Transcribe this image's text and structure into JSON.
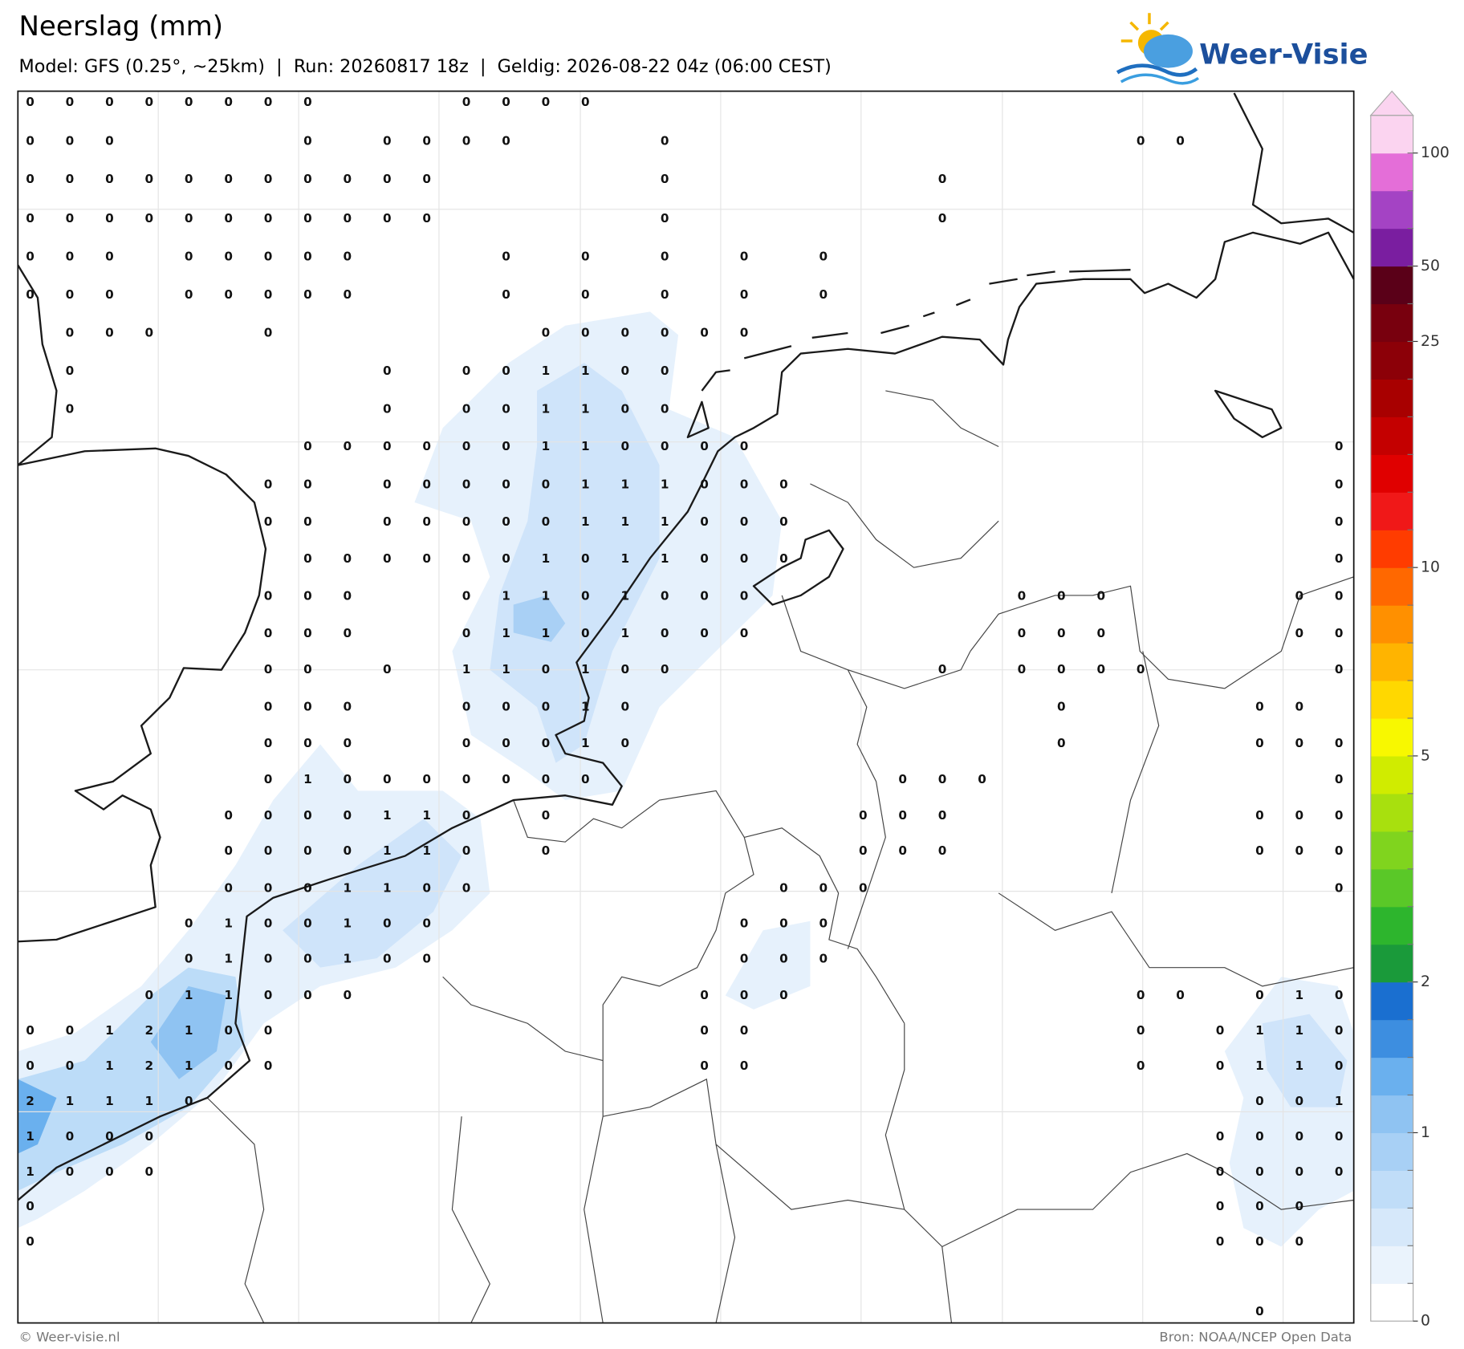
{
  "header": {
    "title": "Neerslag (mm)",
    "subtitle": "Model: GFS (0.25°, ~25km)  |  Run: 20260817 18z  |  Geldig: 2026-08-22 04z (06:00 CEST)",
    "logo": "Weer-Visie"
  },
  "map": {
    "type": "precipitation-map",
    "values": [
      [
        0,
        0,
        0,
        0,
        0,
        0,
        0,
        0,
        null,
        null,
        null,
        0,
        0,
        0,
        0
      ],
      [
        0,
        0,
        0,
        null,
        null,
        null,
        null,
        0,
        null,
        0,
        0,
        0,
        0,
        null,
        null,
        null,
        0,
        null,
        null,
        null,
        null,
        null,
        null,
        null,
        null,
        null,
        null,
        null,
        0,
        0
      ],
      [
        0,
        0,
        0,
        0,
        0,
        0,
        0,
        0,
        0,
        0,
        0,
        null,
        null,
        null,
        null,
        null,
        0,
        null,
        null,
        null,
        null,
        null,
        null,
        0
      ],
      [
        0,
        0,
        0,
        0,
        0,
        0,
        0,
        0,
        0,
        0,
        0,
        null,
        null,
        null,
        null,
        null,
        0,
        null,
        null,
        null,
        null,
        null,
        null,
        0
      ],
      [
        0,
        0,
        0,
        null,
        0,
        0,
        0,
        0,
        0,
        null,
        null,
        null,
        0,
        null,
        0,
        null,
        0,
        null,
        0,
        null,
        0
      ],
      [
        0,
        0,
        0,
        null,
        0,
        0,
        0,
        0,
        0,
        null,
        null,
        null,
        0,
        null,
        0,
        null,
        0,
        null,
        0,
        null,
        0
      ],
      [
        null,
        0,
        0,
        0,
        null,
        null,
        0,
        null,
        null,
        null,
        null,
        null,
        null,
        0,
        0,
        0,
        0,
        0,
        0
      ],
      [
        null,
        0,
        null,
        null,
        null,
        null,
        null,
        null,
        null,
        0,
        null,
        0,
        0,
        1,
        1,
        0,
        0
      ],
      [
        null,
        0,
        null,
        null,
        null,
        null,
        null,
        null,
        null,
        0,
        null,
        0,
        0,
        1,
        1,
        0,
        0
      ],
      [
        null,
        null,
        null,
        null,
        null,
        null,
        null,
        0,
        0,
        0,
        0,
        0,
        0,
        1,
        1,
        0,
        0,
        0,
        0,
        null,
        null,
        null,
        null,
        null,
        null,
        null,
        null,
        null,
        null,
        null,
        null,
        null,
        null,
        0
      ],
      [
        null,
        null,
        null,
        null,
        null,
        null,
        0,
        0,
        null,
        0,
        0,
        0,
        0,
        0,
        1,
        1,
        1,
        0,
        0,
        0,
        null,
        null,
        null,
        null,
        null,
        null,
        null,
        null,
        null,
        null,
        null,
        null,
        null,
        0
      ],
      [
        null,
        null,
        null,
        null,
        null,
        null,
        0,
        0,
        null,
        0,
        0,
        0,
        0,
        0,
        1,
        1,
        1,
        0,
        0,
        0,
        null,
        null,
        null,
        null,
        null,
        null,
        null,
        null,
        null,
        null,
        null,
        null,
        null,
        0
      ],
      [
        null,
        null,
        null,
        null,
        null,
        null,
        null,
        0,
        0,
        0,
        0,
        0,
        0,
        1,
        0,
        1,
        1,
        0,
        0,
        0,
        null,
        null,
        null,
        null,
        null,
        null,
        null,
        null,
        null,
        null,
        null,
        null,
        null,
        0
      ],
      [
        null,
        null,
        null,
        null,
        null,
        null,
        0,
        0,
        0,
        null,
        null,
        0,
        1,
        1,
        0,
        1,
        0,
        0,
        0,
        null,
        null,
        null,
        null,
        null,
        null,
        0,
        0,
        0,
        null,
        null,
        null,
        null,
        0,
        0
      ],
      [
        null,
        null,
        null,
        null,
        null,
        null,
        0,
        0,
        0,
        null,
        null,
        0,
        1,
        1,
        0,
        1,
        0,
        0,
        0,
        null,
        null,
        null,
        null,
        null,
        null,
        0,
        0,
        0,
        null,
        null,
        null,
        null,
        0,
        0
      ],
      [
        null,
        null,
        null,
        null,
        null,
        null,
        0,
        0,
        null,
        0,
        null,
        1,
        1,
        0,
        1,
        0,
        0,
        null,
        null,
        null,
        null,
        null,
        null,
        0,
        null,
        0,
        0,
        0,
        0,
        null,
        null,
        null,
        null,
        0
      ],
      [
        null,
        null,
        null,
        null,
        null,
        null,
        0,
        0,
        0,
        null,
        null,
        0,
        0,
        0,
        1,
        0,
        null,
        null,
        null,
        null,
        null,
        null,
        null,
        null,
        null,
        null,
        0,
        null,
        null,
        null,
        null,
        0,
        0
      ],
      [
        null,
        null,
        null,
        null,
        null,
        null,
        0,
        0,
        0,
        null,
        null,
        0,
        0,
        0,
        1,
        0,
        null,
        null,
        null,
        null,
        null,
        null,
        null,
        null,
        null,
        null,
        0,
        null,
        null,
        null,
        null,
        0,
        0,
        0
      ],
      [
        null,
        null,
        null,
        null,
        null,
        null,
        0,
        1,
        0,
        0,
        0,
        0,
        0,
        0,
        0,
        null,
        null,
        null,
        null,
        null,
        null,
        null,
        0,
        0,
        0,
        null,
        null,
        null,
        null,
        null,
        null,
        null,
        null,
        0
      ],
      [
        null,
        null,
        null,
        null,
        null,
        0,
        0,
        0,
        0,
        1,
        1,
        0,
        null,
        0,
        null,
        null,
        null,
        null,
        null,
        null,
        null,
        0,
        0,
        0,
        null,
        null,
        null,
        null,
        null,
        null,
        null,
        0,
        0,
        0
      ],
      [
        null,
        null,
        null,
        null,
        null,
        0,
        0,
        0,
        0,
        1,
        1,
        0,
        null,
        0,
        null,
        null,
        null,
        null,
        null,
        null,
        null,
        0,
        0,
        0,
        null,
        null,
        null,
        null,
        null,
        null,
        null,
        0,
        0,
        0
      ],
      [
        null,
        null,
        null,
        null,
        null,
        0,
        0,
        0,
        1,
        1,
        0,
        0,
        null,
        null,
        null,
        null,
        null,
        null,
        null,
        0,
        0,
        0,
        null,
        null,
        null,
        null,
        null,
        null,
        null,
        null,
        null,
        null,
        null,
        0
      ],
      [
        null,
        null,
        null,
        null,
        0,
        1,
        0,
        0,
        1,
        0,
        0,
        null,
        null,
        null,
        null,
        null,
        null,
        null,
        0,
        0,
        0
      ],
      [
        null,
        null,
        null,
        null,
        0,
        1,
        0,
        0,
        1,
        0,
        0,
        null,
        null,
        null,
        null,
        null,
        null,
        null,
        0,
        0,
        0
      ],
      [
        null,
        null,
        null,
        0,
        1,
        1,
        0,
        0,
        0,
        null,
        null,
        null,
        null,
        null,
        null,
        null,
        null,
        0,
        0,
        0,
        null,
        null,
        null,
        null,
        null,
        null,
        null,
        null,
        0,
        0,
        null,
        0,
        1,
        0
      ],
      [
        0,
        0,
        1,
        2,
        1,
        0,
        0,
        null,
        null,
        null,
        null,
        null,
        null,
        null,
        null,
        null,
        null,
        0,
        0,
        null,
        null,
        null,
        null,
        null,
        null,
        null,
        null,
        null,
        0,
        null,
        0,
        1,
        1,
        0
      ],
      [
        0,
        0,
        1,
        2,
        1,
        0,
        0,
        null,
        null,
        null,
        null,
        null,
        null,
        null,
        null,
        null,
        null,
        0,
        0,
        null,
        null,
        null,
        null,
        null,
        null,
        null,
        null,
        null,
        0,
        null,
        0,
        1,
        1,
        0
      ],
      [
        2,
        1,
        1,
        1,
        0,
        null,
        null,
        null,
        null,
        null,
        null,
        null,
        null,
        null,
        null,
        null,
        null,
        null,
        null,
        null,
        null,
        null,
        null,
        null,
        null,
        null,
        null,
        null,
        null,
        null,
        null,
        0,
        0,
        1
      ],
      [
        1,
        0,
        0,
        0,
        null,
        null,
        null,
        null,
        null,
        null,
        null,
        null,
        null,
        null,
        null,
        null,
        null,
        null,
        null,
        null,
        null,
        null,
        null,
        null,
        null,
        null,
        null,
        null,
        null,
        null,
        0,
        0,
        0,
        0
      ],
      [
        1,
        0,
        0,
        0,
        null,
        null,
        null,
        null,
        null,
        null,
        null,
        null,
        null,
        null,
        null,
        null,
        null,
        null,
        null,
        null,
        null,
        null,
        null,
        null,
        null,
        null,
        null,
        null,
        null,
        null,
        0,
        0,
        0,
        0
      ],
      [
        0,
        null,
        null,
        null,
        null,
        null,
        null,
        null,
        null,
        null,
        null,
        null,
        null,
        null,
        null,
        null,
        null,
        null,
        null,
        null,
        null,
        null,
        null,
        null,
        null,
        null,
        null,
        null,
        null,
        null,
        0,
        0,
        0
      ],
      [
        0,
        null,
        null,
        null,
        null,
        null,
        null,
        null,
        null,
        null,
        null,
        null,
        null,
        null,
        null,
        null,
        null,
        null,
        null,
        null,
        null,
        null,
        null,
        null,
        null,
        null,
        null,
        null,
        null,
        null,
        0,
        0,
        0
      ],
      [],
      [
        null,
        null,
        null,
        null,
        null,
        null,
        null,
        null,
        null,
        null,
        null,
        null,
        null,
        null,
        null,
        null,
        null,
        null,
        null,
        null,
        null,
        null,
        null,
        null,
        null,
        null,
        null,
        null,
        null,
        null,
        null,
        0
      ]
    ],
    "colorbar": {
      "colors": [
        "#ffffff",
        "#eaf3fc",
        "#d6e8fa",
        "#c0ddf8",
        "#a8d0f5",
        "#8fc3f2",
        "#6ab0ee",
        "#3d8ee0",
        "#1a6fd0",
        "#1a9a3a",
        "#2db52d",
        "#5ac828",
        "#80d41e",
        "#a8e00e",
        "#d0ec00",
        "#f8f800",
        "#ffd800",
        "#ffb400",
        "#ff9000",
        "#ff6800",
        "#ff3c00",
        "#f01818",
        "#e00000",
        "#c40000",
        "#a80000",
        "#8c0008",
        "#78000e",
        "#5a0018",
        "#7a1ea0",
        "#a443c4",
        "#e46ed8",
        "#fbd4f0"
      ],
      "ticks": [
        0,
        1,
        2,
        5,
        10,
        25,
        50,
        100
      ]
    }
  },
  "footer": {
    "copyright": "© Weer-visie.nl",
    "source": "Bron: NOAA/NCEP Open Data"
  }
}
